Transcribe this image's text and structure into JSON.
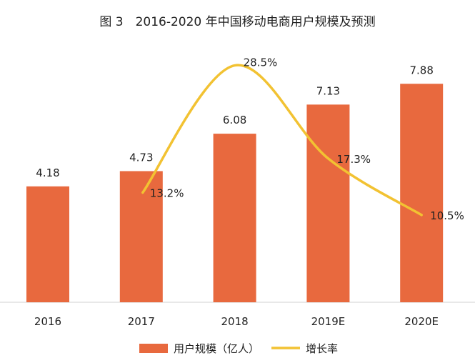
{
  "chart_data": {
    "type": "bar",
    "title": "图 3　2016-2020 年中国移动电商用户规模及预测",
    "categories": [
      "2016",
      "2017",
      "2018",
      "2019E",
      "2020E"
    ],
    "series": [
      {
        "name": "用户规模（亿人）",
        "type": "bar",
        "values": [
          4.18,
          4.73,
          6.08,
          7.13,
          7.88
        ],
        "labels": [
          "4.18",
          "4.73",
          "6.08",
          "7.13",
          "7.88"
        ],
        "color": "#E8693E"
      },
      {
        "name": "增长率",
        "type": "line",
        "values": [
          null,
          13.2,
          28.5,
          17.3,
          10.5
        ],
        "labels": [
          "",
          "13.2%",
          "28.5%",
          "17.3%",
          "10.5%"
        ],
        "color": "#F2C232",
        "smooth": true
      }
    ],
    "xlabel": "",
    "ylabel": "",
    "ylim": [
      0,
      7.88
    ],
    "grid": false,
    "legend": "bottom"
  }
}
